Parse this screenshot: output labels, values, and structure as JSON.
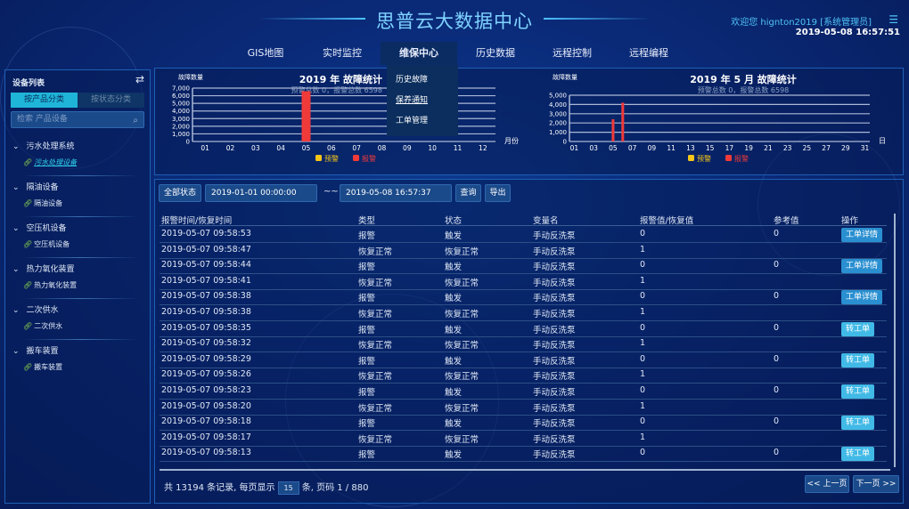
{
  "header": {
    "title": "思普云大数据中心",
    "welcome": "欢迎您  hignton2019 [系统管理员]",
    "datetime": "2019-05-08 16:57:51"
  },
  "nav": {
    "items": [
      "GIS地图",
      "实时监控",
      "维保中心",
      "历史数据",
      "远程控制",
      "远程编程"
    ],
    "active": "维保中心",
    "dropdown": [
      "历史故障",
      "保养通知",
      "工单管理"
    ]
  },
  "sidebar": {
    "title": "设备列表",
    "tabs": [
      "按产品分类",
      "按状态分类"
    ],
    "active_tab": "按产品分类",
    "search_placeholder": "检索 产品设备",
    "groups": [
      {
        "label": "污水处理系统",
        "child": "污水处理设备"
      },
      {
        "label": "隔油设备",
        "child": "隔油设备"
      },
      {
        "label": "空压机设备",
        "child": "空压机设备"
      },
      {
        "label": "热力氧化装置",
        "child": "热力氧化装置"
      },
      {
        "label": "二次供水",
        "child": "二次供水"
      },
      {
        "label": "搬车装置",
        "child": "搬车装置"
      }
    ]
  },
  "colors": {
    "warning": "#f5c518",
    "alarm": "#f03a3a",
    "accent": "#1fb5d8"
  },
  "chart_data": [
    {
      "type": "bar",
      "title": "2019 年 故障统计",
      "subtitle": "预警总数 0，报警总数 6598",
      "ylabel": "故障数量",
      "xlabel": "月份",
      "ylim": [
        0,
        7000
      ],
      "yticks": [
        "0",
        "1,000",
        "2,000",
        "3,000",
        "4,000",
        "5,000",
        "6,000",
        "7,000"
      ],
      "grid": true,
      "legend": "bottom",
      "categories": [
        "01",
        "02",
        "03",
        "04",
        "05",
        "06",
        "07",
        "08",
        "09",
        "10",
        "11",
        "12"
      ],
      "series": [
        {
          "name": "预警",
          "values": [
            0,
            0,
            0,
            0,
            0,
            0,
            0,
            0,
            0,
            0,
            0,
            0
          ]
        },
        {
          "name": "报警",
          "values": [
            0,
            0,
            0,
            0,
            6598,
            0,
            0,
            0,
            0,
            0,
            0,
            0
          ]
        }
      ]
    },
    {
      "type": "bar",
      "title": "2019 年 5 月 故障统计",
      "subtitle": "预警总数 0，报警总数 6598",
      "ylabel": "故障数量",
      "xlabel": "日",
      "ylim": [
        0,
        5000
      ],
      "yticks": [
        "0",
        "1,000",
        "2,000",
        "3,000",
        "4,000",
        "5,000"
      ],
      "grid": true,
      "legend": "bottom",
      "categories": [
        "01",
        "02",
        "03",
        "04",
        "05",
        "06",
        "07",
        "08",
        "09",
        "10",
        "11",
        "12",
        "13",
        "14",
        "15",
        "16",
        "17",
        "18",
        "19",
        "20",
        "21",
        "22",
        "23",
        "24",
        "25",
        "26",
        "27",
        "28",
        "29",
        "30",
        "31"
      ],
      "series": [
        {
          "name": "预警",
          "values": [
            0,
            0,
            0,
            0,
            0,
            0,
            0,
            0,
            0,
            0,
            0,
            0,
            0,
            0,
            0,
            0,
            0,
            0,
            0,
            0,
            0,
            0,
            0,
            0,
            0,
            0,
            0,
            0,
            0,
            0,
            0
          ]
        },
        {
          "name": "报警",
          "values": [
            0,
            0,
            0,
            0,
            2400,
            4198,
            0,
            0,
            0,
            0,
            0,
            0,
            0,
            0,
            0,
            0,
            0,
            0,
            0,
            0,
            0,
            0,
            0,
            0,
            0,
            0,
            0,
            0,
            0,
            0,
            0
          ]
        }
      ]
    }
  ],
  "filter": {
    "status": "全部状态",
    "start": "2019-01-01 00:00:00",
    "sep": "~~",
    "end": "2019-05-08 16:57:37",
    "query": "查询",
    "export": "导出"
  },
  "table": {
    "headers": [
      "报警时间/恢复时间",
      "类型",
      "状态",
      "变量名",
      "报警值/恢复值",
      "参考值",
      "操作"
    ],
    "rows": [
      [
        "2019-05-07 09:58:53",
        "报警",
        "触发",
        "手动反洗泵",
        "0",
        "0",
        "工单详情"
      ],
      [
        "2019-05-07 09:58:47",
        "恢复正常",
        "恢复正常",
        "手动反洗泵",
        "1",
        "",
        ""
      ],
      [
        "2019-05-07 09:58:44",
        "报警",
        "触发",
        "手动反洗泵",
        "0",
        "0",
        "工单详情"
      ],
      [
        "2019-05-07 09:58:41",
        "恢复正常",
        "恢复正常",
        "手动反洗泵",
        "1",
        "",
        ""
      ],
      [
        "2019-05-07 09:58:38",
        "报警",
        "触发",
        "手动反洗泵",
        "0",
        "0",
        "工单详情"
      ],
      [
        "2019-05-07 09:58:38",
        "恢复正常",
        "恢复正常",
        "手动反洗泵",
        "1",
        "",
        ""
      ],
      [
        "2019-05-07 09:58:35",
        "报警",
        "触发",
        "手动反洗泵",
        "0",
        "0",
        "转工单"
      ],
      [
        "2019-05-07 09:58:32",
        "恢复正常",
        "恢复正常",
        "手动反洗泵",
        "1",
        "",
        ""
      ],
      [
        "2019-05-07 09:58:29",
        "报警",
        "触发",
        "手动反洗泵",
        "0",
        "0",
        "转工单"
      ],
      [
        "2019-05-07 09:58:26",
        "恢复正常",
        "恢复正常",
        "手动反洗泵",
        "1",
        "",
        ""
      ],
      [
        "2019-05-07 09:58:23",
        "报警",
        "触发",
        "手动反洗泵",
        "0",
        "0",
        "转工单"
      ],
      [
        "2019-05-07 09:58:20",
        "恢复正常",
        "恢复正常",
        "手动反洗泵",
        "1",
        "",
        ""
      ],
      [
        "2019-05-07 09:58:18",
        "报警",
        "触发",
        "手动反洗泵",
        "0",
        "0",
        "转工单"
      ],
      [
        "2019-05-07 09:58:17",
        "恢复正常",
        "恢复正常",
        "手动反洗泵",
        "1",
        "",
        ""
      ],
      [
        "2019-05-07 09:58:13",
        "报警",
        "触发",
        "手动反洗泵",
        "0",
        "0",
        "转工单"
      ]
    ]
  },
  "pagination": {
    "prefix": "共 13194 条记录, 每页显示",
    "page_size": "15",
    "suffix": "条, 页码 1 / 880",
    "prev": "<< 上一页",
    "next": "下一页 >>"
  }
}
